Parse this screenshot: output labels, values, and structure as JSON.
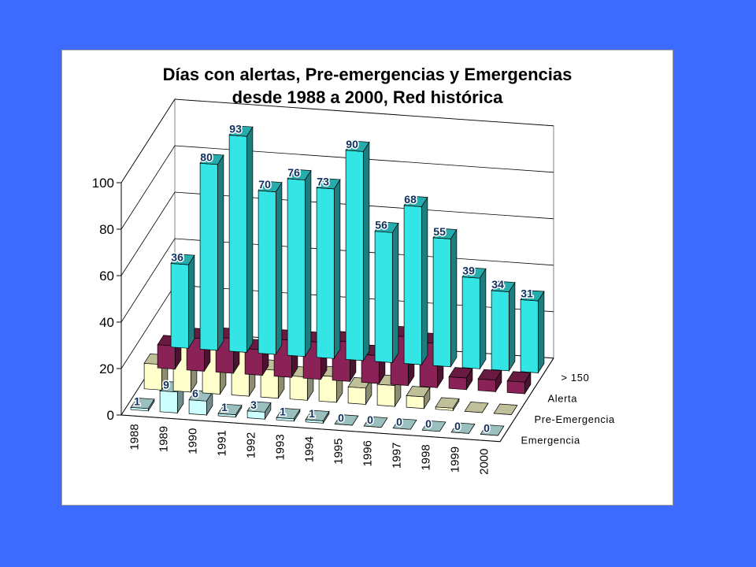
{
  "slide": {
    "background": "#3D6BFF"
  },
  "chart_data": {
    "type": "bar",
    "subtype": "3d-column",
    "title_line1": "Días con alertas, Pre-emergencias y Emergencias",
    "title_line2": "desde 1988 a 2000, Red histórica",
    "categories": [
      "1988",
      "1989",
      "1990",
      "1991",
      "1992",
      "1993",
      "1994",
      "1995",
      "1996",
      "1997",
      "1998",
      "1999",
      "2000"
    ],
    "series": [
      {
        "name": "> 150",
        "color": "#33E5E5",
        "values": [
          36,
          80,
          93,
          70,
          76,
          73,
          90,
          56,
          68,
          55,
          39,
          34,
          31
        ]
      },
      {
        "name": "Alerta",
        "color": "#8B2257",
        "values": [
          10,
          14,
          15,
          11,
          16,
          16,
          17,
          12,
          21,
          19,
          5,
          5,
          5
        ]
      },
      {
        "name": "Pre-Emergencia",
        "color": "#FFFFCC",
        "values": [
          11,
          23,
          21,
          19,
          12,
          10,
          11,
          7,
          9,
          5,
          1,
          0,
          0
        ]
      },
      {
        "name": "Emergencia",
        "color": "#CCFFFF",
        "values": [
          1,
          9,
          6,
          1,
          3,
          1,
          1,
          0,
          0,
          0,
          0,
          0,
          0
        ]
      }
    ],
    "data_labels_series": [
      "> 150",
      "Emergencia"
    ],
    "yticks": [
      "0",
      "20",
      "40",
      "60",
      "80",
      "100"
    ],
    "ylim": [
      0,
      100
    ],
    "grid": true
  }
}
